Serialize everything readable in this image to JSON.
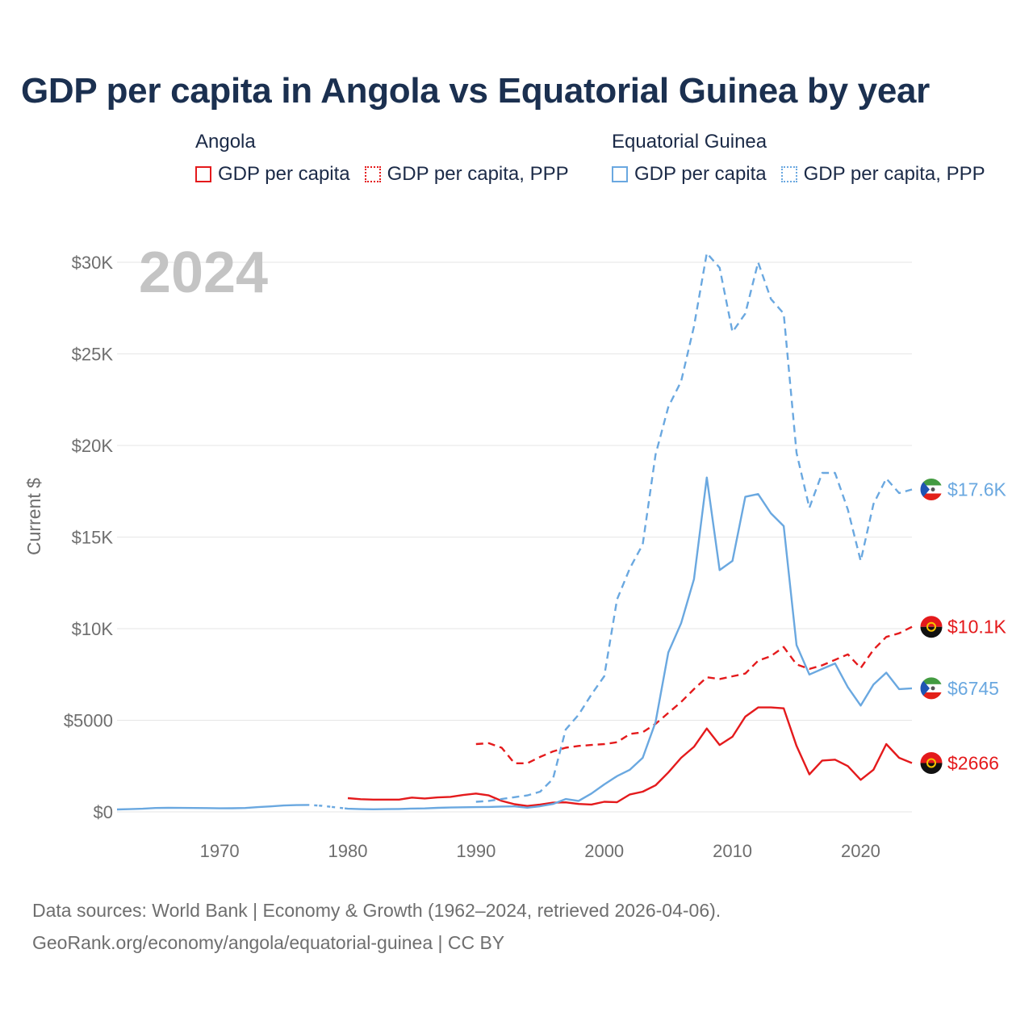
{
  "title": "GDP per capita in Angola vs Equatorial Guinea by year",
  "legend": {
    "angola": {
      "group": "Angola",
      "solid": "GDP per capita",
      "dotted": "GDP per capita, PPP"
    },
    "eqg": {
      "group": "Equatorial Guinea",
      "solid": "GDP per capita",
      "dotted": "GDP per capita, PPP"
    }
  },
  "year_badge": "2024",
  "footer": {
    "line1": "Data sources: World Bank | Economy & Growth (1962–2024, retrieved 2026-04-06).",
    "line2": "GeoRank.org/economy/angola/equatorial-guinea | CC BY"
  },
  "colors": {
    "angola": "#e41a1c",
    "eqg": "#6aa8e0",
    "grid": "#e6e6e6",
    "axis_text": "#6e6e6e",
    "badge": "#c4c4c4"
  },
  "chart_data": {
    "type": "line",
    "title": "GDP per capita in Angola vs Equatorial Guinea by year",
    "xlabel": "",
    "ylabel": "Current $",
    "xlim": [
      1962,
      2024
    ],
    "ylim": [
      0,
      30000
    ],
    "yticks": [
      0,
      5000,
      10000,
      15000,
      20000,
      25000,
      30000
    ],
    "ytick_labels": [
      "$0",
      "$5000",
      "$10K",
      "$15K",
      "$20K",
      "$25K",
      "$30K"
    ],
    "xticks": [
      1970,
      1980,
      1990,
      2000,
      2010,
      2020
    ],
    "xtick_labels": [
      "1970",
      "1980",
      "1990",
      "2000",
      "2010",
      "2020"
    ],
    "series": [
      {
        "name": "Angola GDP per capita",
        "country": "angola",
        "style": "solid",
        "end_label": "$2666",
        "x": [
          1980,
          1981,
          1982,
          1983,
          1984,
          1985,
          1986,
          1987,
          1988,
          1989,
          1990,
          1991,
          1992,
          1993,
          1994,
          1995,
          1996,
          1997,
          1998,
          1999,
          2000,
          2001,
          2002,
          2003,
          2004,
          2005,
          2006,
          2007,
          2008,
          2009,
          2010,
          2011,
          2012,
          2013,
          2014,
          2015,
          2016,
          2017,
          2018,
          2019,
          2020,
          2021,
          2022,
          2023,
          2024
        ],
        "y": [
          750,
          690,
          670,
          670,
          670,
          780,
          730,
          790,
          820,
          920,
          1000,
          900,
          600,
          420,
          320,
          400,
          500,
          520,
          430,
          400,
          550,
          530,
          950,
          1100,
          1450,
          2150,
          2950,
          3550,
          4550,
          3650,
          4100,
          5200,
          5700,
          5700,
          5650,
          3600,
          2050,
          2800,
          2850,
          2500,
          1750,
          2300,
          3700,
          2950,
          2666
        ]
      },
      {
        "name": "Angola GDP per capita, PPP",
        "country": "angola",
        "style": "dashed",
        "end_label": "$10.1K",
        "x": [
          1990,
          1991,
          1992,
          1993,
          1994,
          1995,
          1996,
          1997,
          1998,
          1999,
          2000,
          2001,
          2002,
          2003,
          2004,
          2005,
          2006,
          2007,
          2008,
          2009,
          2010,
          2011,
          2012,
          2013,
          2014,
          2015,
          2016,
          2017,
          2018,
          2019,
          2020,
          2021,
          2022,
          2023,
          2024
        ],
        "y": [
          3700,
          3750,
          3500,
          2650,
          2650,
          3000,
          3300,
          3500,
          3600,
          3650,
          3700,
          3800,
          4250,
          4350,
          4800,
          5400,
          6000,
          6700,
          7350,
          7250,
          7400,
          7550,
          8250,
          8500,
          9000,
          8050,
          7800,
          8000,
          8300,
          8600,
          7850,
          8850,
          9550,
          9750,
          10100
        ]
      },
      {
        "name": "Equatorial Guinea GDP per capita",
        "country": "eqg",
        "style": "solid",
        "end_label": "$6745",
        "x": [
          1962,
          1963,
          1964,
          1965,
          1966,
          1967,
          1968,
          1969,
          1970,
          1971,
          1972,
          1973,
          1974,
          1975,
          1976,
          1977,
          1978,
          1979,
          1980,
          1981,
          1982,
          1983,
          1984,
          1985,
          1986,
          1987,
          1988,
          1989,
          1990,
          1991,
          1992,
          1993,
          1994,
          1995,
          1996,
          1997,
          1998,
          1999,
          2000,
          2001,
          2002,
          2003,
          2004,
          2005,
          2006,
          2007,
          2008,
          2009,
          2010,
          2011,
          2012,
          2013,
          2014,
          2015,
          2016,
          2017,
          2018,
          2019,
          2020,
          2021,
          2022,
          2023,
          2024
        ],
        "y": [
          130,
          150,
          170,
          210,
          220,
          215,
          210,
          205,
          195,
          200,
          210,
          260,
          300,
          350,
          370,
          380,
          330,
          250,
          170,
          150,
          140,
          150,
          160,
          180,
          190,
          220,
          240,
          250,
          260,
          270,
          290,
          300,
          230,
          310,
          430,
          700,
          600,
          1000,
          1500,
          1950,
          2300,
          2950,
          4900,
          8700,
          10300,
          12700,
          18250,
          13200,
          13700,
          17200,
          17350,
          16300,
          15600,
          9100,
          7500,
          7800,
          8100,
          6800,
          5800,
          6950,
          7600,
          6700,
          6745
        ]
      },
      {
        "name": "Equatorial Guinea GDP per capita, PPP",
        "country": "eqg",
        "style": "dashed",
        "end_label": "$17.6K",
        "x": [
          1990,
          1991,
          1992,
          1993,
          1994,
          1995,
          1996,
          1997,
          1998,
          1999,
          2000,
          2001,
          2002,
          2003,
          2004,
          2005,
          2006,
          2007,
          2008,
          2009,
          2010,
          2011,
          2012,
          2013,
          2014,
          2015,
          2016,
          2017,
          2018,
          2019,
          2020,
          2021,
          2022,
          2023,
          2024
        ],
        "y": [
          550,
          600,
          700,
          800,
          900,
          1100,
          1800,
          4500,
          5300,
          6400,
          7400,
          11600,
          13300,
          14600,
          19500,
          22100,
          23500,
          26500,
          30500,
          29700,
          26200,
          27200,
          30000,
          28000,
          27200,
          19600,
          16600,
          18500,
          18500,
          16500,
          13700,
          16800,
          18200,
          17400,
          17600
        ]
      }
    ]
  }
}
